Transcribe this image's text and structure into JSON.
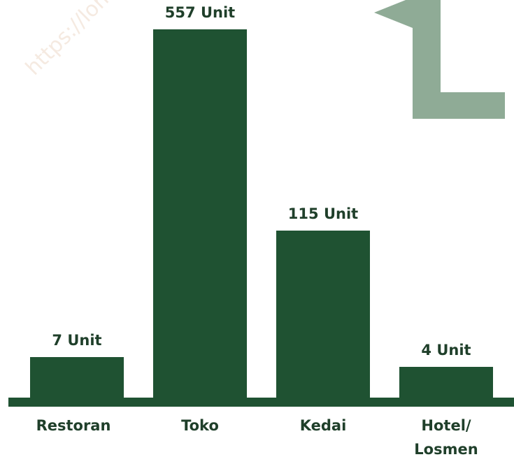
{
  "chart_data": {
    "type": "bar",
    "categories": [
      "Restoran",
      "Toko",
      "Kedai",
      "Hotel/ Losmen"
    ],
    "values": [
      7,
      557,
      115,
      4
    ],
    "value_labels": [
      "7 Unit",
      "557 Unit",
      "115 Unit",
      "4 Unit"
    ],
    "color": "#1f5232",
    "watermark": "https://lombo"
  }
}
